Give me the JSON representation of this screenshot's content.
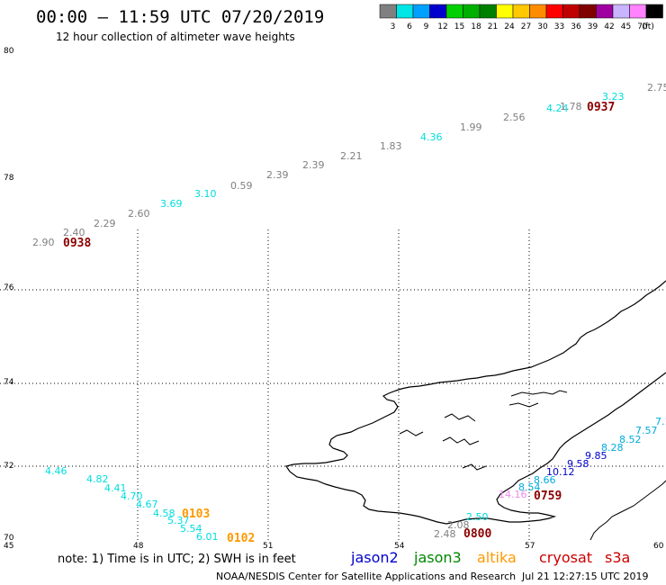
{
  "header": {
    "title": "00:00 – 11:59 UTC 07/20/2019",
    "subtitle": "12 hour collection of altimeter wave heights"
  },
  "legend": {
    "colors": [
      "#808080",
      "#00e5e5",
      "#00a0ff",
      "#0000cd",
      "#00d000",
      "#00b000",
      "#008000",
      "#ffff00",
      "#ffc800",
      "#ff8c00",
      "#ff0000",
      "#c00000",
      "#800000",
      "#a000a0",
      "#c8b4ff",
      "#ff82ff",
      "#000000"
    ],
    "labels": [
      "3",
      "6",
      "9",
      "12",
      "15",
      "18",
      "21",
      "24",
      "27",
      "30",
      "33",
      "36",
      "39",
      "42",
      "45",
      "70",
      "(ft)"
    ]
  },
  "axes": {
    "lat_labels": [
      "80",
      "78",
      "76",
      "74",
      "72",
      "70"
    ],
    "lon_labels": [
      "45",
      "48",
      "51",
      "54",
      "57",
      "60"
    ]
  },
  "swh_labels": [
    {
      "text": "2.90",
      "color": "#808080"
    },
    {
      "text": "2.40",
      "color": "#808080"
    },
    {
      "text": "2.29",
      "color": "#808080"
    },
    {
      "text": "2.60",
      "color": "#808080"
    },
    {
      "text": "3.69",
      "color": "#00dddd"
    },
    {
      "text": "3.10",
      "color": "#00dddd"
    },
    {
      "text": "0.59",
      "color": "#808080"
    },
    {
      "text": "2.39",
      "color": "#808080"
    },
    {
      "text": "2.39",
      "color": "#808080"
    },
    {
      "text": "2.21",
      "color": "#808080"
    },
    {
      "text": "1.83",
      "color": "#808080"
    },
    {
      "text": "4.36",
      "color": "#00dddd"
    },
    {
      "text": "1.99",
      "color": "#808080"
    },
    {
      "text": "2.56",
      "color": "#808080"
    },
    {
      "text": "4.24",
      "color": "#00dddd"
    },
    {
      "text": "1.78",
      "color": "#808080"
    },
    {
      "text": "3.23",
      "color": "#00dddd"
    },
    {
      "text": "2.75",
      "color": "#808080"
    },
    {
      "text": "4.46",
      "color": "#00dddd"
    },
    {
      "text": "4.82",
      "color": "#00dddd"
    },
    {
      "text": "4.41",
      "color": "#00dddd"
    },
    {
      "text": "4.70",
      "color": "#00dddd"
    },
    {
      "text": "4.67",
      "color": "#00dddd"
    },
    {
      "text": "4.58",
      "color": "#00dddd"
    },
    {
      "text": "5.37",
      "color": "#00dddd"
    },
    {
      "text": "5.54",
      "color": "#00dddd"
    },
    {
      "text": "6.01",
      "color": "#00dddd"
    },
    {
      "text": "7.1",
      "color": "#00aadd"
    },
    {
      "text": "7.57",
      "color": "#00aadd"
    },
    {
      "text": "8.52",
      "color": "#00aadd"
    },
    {
      "text": "8.28",
      "color": "#00aadd"
    },
    {
      "text": "9.85",
      "color": "#0000cc"
    },
    {
      "text": "9.58",
      "color": "#0000cc"
    },
    {
      "text": "10.12",
      "color": "#0000cc"
    },
    {
      "text": "8.66",
      "color": "#00aadd"
    },
    {
      "text": "8.54",
      "color": "#00aadd"
    },
    {
      "text": "14.16",
      "color": "#ee88ee"
    },
    {
      "text": "2.48",
      "color": "#808080"
    },
    {
      "text": "2.08",
      "color": "#808080"
    },
    {
      "text": "2.50",
      "color": "#00dddd"
    }
  ],
  "time_labels": [
    {
      "text": "0938",
      "color": "#8b0000"
    },
    {
      "text": "0937",
      "color": "#8b0000"
    },
    {
      "text": "0759",
      "color": "#8b0000"
    },
    {
      "text": "0800",
      "color": "#8b0000"
    },
    {
      "text": "0103",
      "color": "#ff9900"
    },
    {
      "text": "0102",
      "color": "#ff9900"
    }
  ],
  "note": {
    "text": "note:  1) Time is in UTC;  2) SWH is in feet"
  },
  "missions": [
    {
      "name": "jason2",
      "color": "#0000cc"
    },
    {
      "name": "jason3",
      "color": "#008800"
    },
    {
      "name": "altika",
      "color": "#ff9900"
    },
    {
      "name": "cryosat",
      "color": "#cc0000"
    },
    {
      "name": "s3a",
      "color": "#cc0000"
    }
  ],
  "footer": {
    "center": "NOAA/NESDIS Center for Satellite Applications and Research",
    "timestamp": "Jul 21 12:27:15 UTC 2019"
  }
}
